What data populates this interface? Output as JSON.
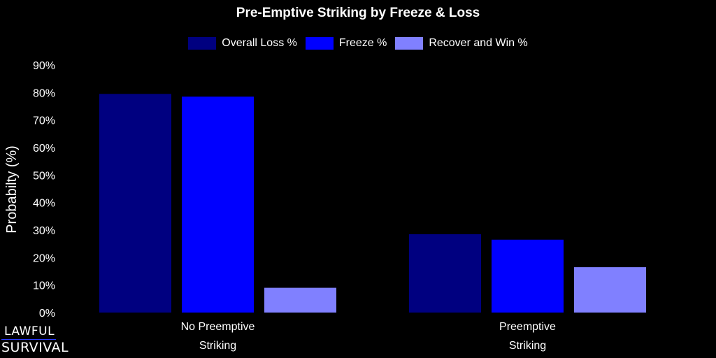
{
  "logo": {
    "line1": "LAWFUL",
    "line2": "SURVIVAL"
  },
  "chart_data": {
    "type": "bar",
    "title": "Pre-Emptive Striking by Freeze & Loss",
    "ylabel": "Probabilty (%)",
    "xlabel": "",
    "ylim": [
      0,
      90
    ],
    "yticks": [
      0,
      10,
      20,
      30,
      40,
      50,
      60,
      70,
      80,
      90
    ],
    "ytick_format": "%",
    "categories": [
      [
        "No Preemptive",
        "Striking"
      ],
      [
        "Preemptive",
        "Striking"
      ]
    ],
    "series": [
      {
        "name": "Overall Loss %",
        "color": "#000080",
        "values": [
          79.5,
          28.5
        ]
      },
      {
        "name": "Freeze %",
        "color": "#0000ff",
        "values": [
          78.5,
          26.5
        ]
      },
      {
        "name": "Recover and Win %",
        "color": "#8080ff",
        "values": [
          9,
          16.5
        ]
      }
    ],
    "legend": "top-center",
    "grid": false,
    "background": "#000000"
  }
}
